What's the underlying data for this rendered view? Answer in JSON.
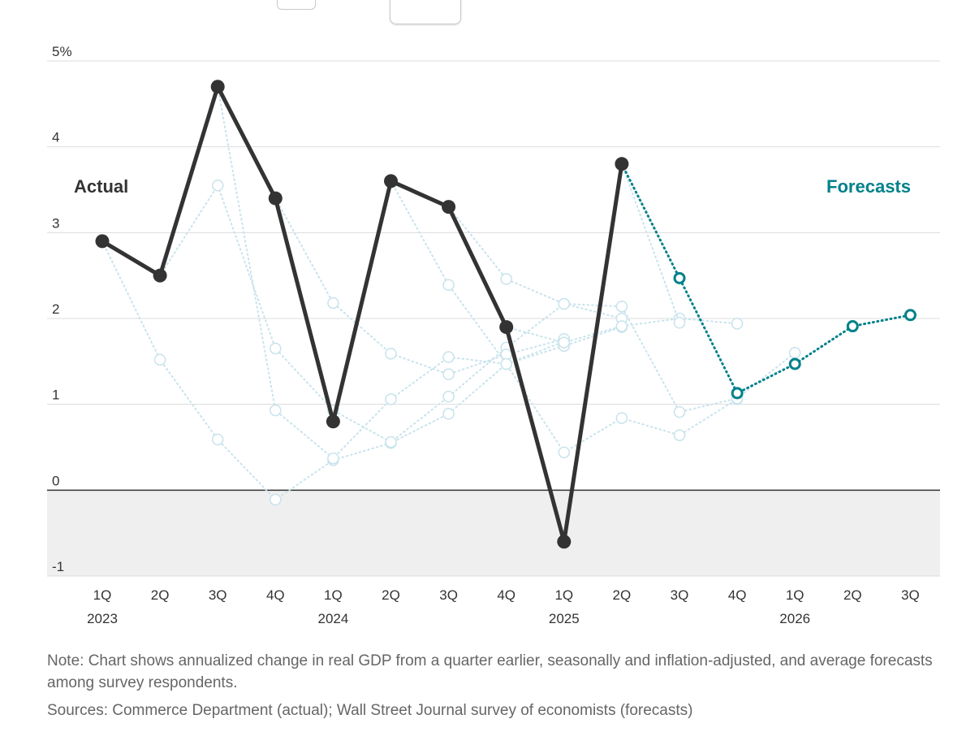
{
  "controls": [
    "",
    ""
  ],
  "chart_data": {
    "type": "line",
    "ylim": [
      -1,
      5
    ],
    "y_ticks": [
      "5%",
      "4",
      "3",
      "2",
      "1",
      "0",
      "-1"
    ],
    "y_tick_values": [
      5,
      4,
      3,
      2,
      1,
      0,
      -1
    ],
    "negative_region_shaded": true,
    "grid": true,
    "x_quarters": [
      "1Q",
      "2Q",
      "3Q",
      "4Q",
      "1Q",
      "2Q",
      "3Q",
      "4Q",
      "1Q",
      "2Q",
      "3Q",
      "4Q",
      "1Q",
      "2Q",
      "3Q"
    ],
    "x_years": [
      {
        "label": "2023",
        "index": 0
      },
      {
        "label": "2024",
        "index": 4
      },
      {
        "label": "2025",
        "index": 8
      },
      {
        "label": "2026",
        "index": 12
      }
    ],
    "series": [
      {
        "name": "Actual",
        "color": "#333333",
        "style": "solid",
        "points": [
          [
            0,
            2.9
          ],
          [
            1,
            2.5
          ],
          [
            2,
            4.7
          ],
          [
            3,
            3.4
          ],
          [
            4,
            0.8
          ],
          [
            5,
            3.6
          ],
          [
            6,
            3.3
          ],
          [
            7,
            1.9
          ],
          [
            8,
            -0.6
          ],
          [
            9,
            3.8
          ]
        ]
      },
      {
        "name": "Forecasts",
        "color": "#00818a",
        "style": "dotted",
        "points": [
          [
            9,
            3.8
          ],
          [
            10,
            2.47
          ],
          [
            11,
            1.13
          ],
          [
            12,
            1.47
          ],
          [
            13,
            1.91
          ],
          [
            14,
            2.04
          ]
        ]
      }
    ],
    "previous_forecasts": {
      "color": "#c8e3ec",
      "series": [
        [
          [
            0,
            2.9
          ],
          [
            1,
            1.52
          ],
          [
            2,
            0.59
          ],
          [
            3,
            -0.11
          ],
          [
            4,
            0.35
          ],
          [
            5,
            0.55
          ],
          [
            6,
            0.89
          ],
          [
            7,
            1.47
          ],
          [
            8,
            1.68
          ],
          [
            9,
            1.9
          ]
        ],
        [
          [
            1,
            2.5
          ],
          [
            2,
            3.55
          ],
          [
            3,
            1.65
          ],
          [
            4,
            0.93
          ],
          [
            5,
            0.56
          ],
          [
            6,
            1.09
          ],
          [
            7,
            1.66
          ],
          [
            8,
            2.17
          ],
          [
            9,
            2.0
          ]
        ],
        [
          [
            2,
            4.7
          ],
          [
            3,
            0.93
          ],
          [
            4,
            0.37
          ],
          [
            5,
            1.06
          ],
          [
            6,
            1.55
          ],
          [
            7,
            1.47
          ],
          [
            8,
            1.73
          ]
        ],
        [
          [
            3,
            3.4
          ],
          [
            4,
            2.18
          ],
          [
            5,
            1.59
          ],
          [
            6,
            1.35
          ],
          [
            7,
            1.58
          ],
          [
            8,
            1.76
          ]
        ],
        [
          [
            5,
            3.6
          ],
          [
            6,
            2.39
          ],
          [
            7,
            1.47
          ],
          [
            8,
            0.44
          ],
          [
            9,
            0.84
          ],
          [
            10,
            0.64
          ],
          [
            11,
            1.06
          ]
        ],
        [
          [
            6,
            3.3
          ],
          [
            7,
            2.46
          ],
          [
            8,
            2.17
          ],
          [
            9,
            2.14
          ],
          [
            10,
            0.91
          ],
          [
            11,
            1.07
          ],
          [
            12,
            1.6
          ]
        ],
        [
          [
            7,
            1.9
          ],
          [
            8,
            1.72
          ],
          [
            9,
            1.91
          ],
          [
            10,
            2.0
          ],
          [
            11,
            1.94
          ]
        ],
        [
          [
            9,
            3.8
          ],
          [
            10,
            1.95
          ]
        ]
      ]
    },
    "annotations": [
      {
        "text": "Actual",
        "color": "#333333"
      },
      {
        "text": "Forecasts",
        "color": "#00818a"
      }
    ]
  },
  "footer": {
    "note": "Note: Chart shows annualized change in real GDP from a quarter earlier, seasonally and inflation-adjusted, and average forecasts among survey respondents.",
    "sources": "Sources: Commerce Department (actual); Wall Street Journal survey of economists (forecasts)"
  }
}
